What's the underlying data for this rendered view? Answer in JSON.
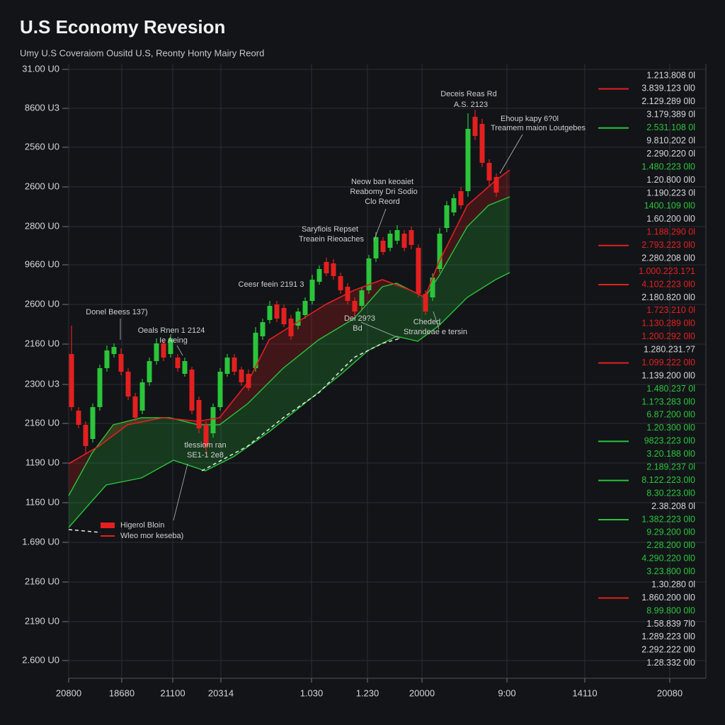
{
  "chart_data": {
    "type": "candlestick",
    "title": "U.S Economy Revesion",
    "subtitle": "Umy U.S Coveraiom Ousitd U.S, Reonty Honty Mairy Reord",
    "xlim": [
      0,
      900
    ],
    "ylim": [
      -27,
      843
    ],
    "xticks": [
      {
        "value": 0,
        "label": "20800"
      },
      {
        "value": 75,
        "label": "18680"
      },
      {
        "value": 147,
        "label": "21100"
      },
      {
        "value": 215,
        "label": "20314"
      },
      {
        "value": 343,
        "label": "1.030"
      },
      {
        "value": 422,
        "label": "1.230"
      },
      {
        "value": 499,
        "label": "20000"
      },
      {
        "value": 619,
        "label": "9:00"
      },
      {
        "value": 729,
        "label": "14110"
      },
      {
        "value": 849,
        "label": "20080"
      }
    ],
    "yticks": [
      {
        "value": 0,
        "label": "2.600 U0"
      },
      {
        "value": 55,
        "label": "2190 U0"
      },
      {
        "value": 111,
        "label": "2160 U0"
      },
      {
        "value": 167,
        "label": "1.690 U0"
      },
      {
        "value": 223,
        "label": "1160 U0"
      },
      {
        "value": 279,
        "label": "1190 U0"
      },
      {
        "value": 335,
        "label": "2160 U0"
      },
      {
        "value": 390,
        "label": "2300 U3"
      },
      {
        "value": 447,
        "label": "2160 U0"
      },
      {
        "value": 503,
        "label": "2600 U0"
      },
      {
        "value": 559,
        "label": "9660 U0"
      },
      {
        "value": 613,
        "label": "2800 U0"
      },
      {
        "value": 669,
        "label": "2600 U0"
      },
      {
        "value": 725,
        "label": "2560 U0"
      },
      {
        "value": 780,
        "label": "8600 U3"
      },
      {
        "value": 835,
        "label": "31.00 U0"
      }
    ],
    "grid": true,
    "legend": "lower left",
    "candles": {
      "name": "Higerol Bloin",
      "up_color": "#2bc43a",
      "down_color": "#e3201f",
      "x": [
        4,
        14,
        24,
        34,
        44,
        54,
        64,
        74,
        84,
        94,
        104,
        114,
        124,
        134,
        144,
        154,
        164,
        174,
        184,
        194,
        204,
        214,
        224,
        234,
        244,
        254,
        264,
        274,
        284,
        294,
        304,
        314,
        324,
        334,
        344,
        354,
        364,
        374,
        384,
        394,
        404,
        414,
        424,
        434,
        444,
        454,
        464,
        474,
        484,
        494,
        504,
        514,
        524,
        534,
        544,
        554,
        564,
        574,
        584,
        594,
        604
      ],
      "open": [
        433,
        353,
        333,
        313,
        358,
        413,
        433,
        433,
        408,
        373,
        353,
        393,
        423,
        448,
        433,
        428,
        405,
        411,
        368,
        333,
        321,
        358,
        405,
        428,
        411,
        405,
        413,
        458,
        481,
        503,
        498,
        483,
        473,
        488,
        508,
        535,
        563,
        561,
        543,
        528,
        508,
        501,
        523,
        568,
        593,
        583,
        593,
        603,
        608,
        583,
        518,
        513,
        553,
        611,
        633,
        663,
        663,
        768,
        758,
        703,
        683
      ],
      "high": [
        473,
        358,
        338,
        363,
        418,
        445,
        448,
        441,
        413,
        378,
        398,
        428,
        455,
        453,
        461,
        433,
        428,
        415,
        373,
        338,
        363,
        413,
        433,
        433,
        415,
        411,
        471,
        483,
        508,
        508,
        503,
        488,
        498,
        513,
        545,
        558,
        569,
        567,
        548,
        533,
        513,
        528,
        573,
        605,
        598,
        608,
        615,
        608,
        613,
        588,
        523,
        547,
        611,
        649,
        659,
        669,
        773,
        778,
        765,
        708,
        688
      ],
      "low": [
        353,
        328,
        293,
        308,
        353,
        408,
        428,
        403,
        368,
        338,
        348,
        388,
        418,
        423,
        428,
        408,
        401,
        348,
        321,
        293,
        315,
        353,
        401,
        403,
        388,
        381,
        408,
        453,
        476,
        478,
        471,
        453,
        468,
        483,
        503,
        531,
        543,
        538,
        518,
        503,
        488,
        496,
        518,
        563,
        573,
        578,
        588,
        578,
        581,
        513,
        488,
        508,
        548,
        605,
        628,
        638,
        655,
        735,
        697,
        671,
        655
      ],
      "close": [
        358,
        333,
        303,
        358,
        413,
        438,
        443,
        408,
        373,
        343,
        393,
        423,
        448,
        428,
        455,
        413,
        423,
        353,
        328,
        303,
        358,
        408,
        428,
        408,
        393,
        385,
        463,
        478,
        501,
        483,
        475,
        458,
        493,
        508,
        538,
        553,
        547,
        543,
        523,
        508,
        493,
        523,
        568,
        598,
        577,
        603,
        608,
        583,
        587,
        518,
        493,
        541,
        603,
        643,
        653,
        643,
        751,
        741,
        703,
        678,
        661
      ]
    },
    "lines": [
      {
        "name": "Wleo mor keseba)",
        "color": "#e3201f",
        "x": [
          0,
          43,
          83,
          133,
          183,
          213,
          253,
          283,
          323,
          363,
          403,
          443,
          483,
          503,
          523,
          563,
          603,
          623
        ],
        "values": [
          278,
          303,
          333,
          343,
          338,
          343,
          393,
          453,
          478,
          503,
          523,
          538,
          523,
          513,
          563,
          643,
          678,
          693
        ]
      },
      {
        "color": "#e8e8e8",
        "dash": true,
        "x": [
          0,
          45,
          100,
          188,
          253,
          303,
          353,
          403,
          443,
          468
        ],
        "values": [
          185,
          181,
          null,
          268,
          303,
          343,
          378,
          428,
          448,
          455
        ]
      }
    ],
    "band": {
      "color": "#2bc43a",
      "upper": {
        "x": [
          0,
          33,
          63,
          103,
          143,
          183,
          213,
          253,
          303,
          353,
          403,
          443,
          463,
          483,
          503,
          523,
          563,
          593,
          623
        ],
        "values": [
          233,
          293,
          333,
          343,
          343,
          333,
          333,
          363,
          413,
          453,
          483,
          528,
          533,
          523,
          513,
          543,
          613,
          643,
          655
        ]
      },
      "lower": {
        "x": [
          0,
          53,
          103,
          148,
          193,
          233,
          283,
          333,
          383,
          423,
          463,
          493,
          523,
          563,
          603,
          623
        ],
        "values": [
          188,
          248,
          258,
          283,
          268,
          288,
          323,
          363,
          403,
          438,
          458,
          451,
          473,
          513,
          538,
          548
        ]
      }
    },
    "annotations": [
      "Deceis Reas Rd",
      "A.S. 2123",
      "Ehoup kapy 6?0l",
      "Treamem maion Loutgebes",
      "Neow ban keoaiet",
      "Reabomy Dri Sodio",
      "Clo Reord",
      "Saryfiois Repset",
      "Treaein Rieoaches",
      "Ceesr feein 2191 3",
      "Donel Beess 137)",
      "Oeals Rnen 1 2124",
      "Ie Aeing",
      "Dei 29?3",
      "Bd",
      "Cheded",
      "Strandeae e tersin",
      "tlessiom ran",
      "SE1-1 2e8"
    ],
    "side_list": [
      {
        "text": "1.213.808 0l",
        "color": "#d6d6d6"
      },
      {
        "text": "3.839.123 0l0",
        "color": "#d6d6d6",
        "marker": "#e3201f"
      },
      {
        "text": "2.129.289 0l0",
        "color": "#d6d6d6"
      },
      {
        "text": "3.179.389 0l",
        "color": "#d6d6d6"
      },
      {
        "text": "2.531.108 0l",
        "color": "#2bc43a",
        "marker": "#2bc43a"
      },
      {
        "text": "9.810.202 0l",
        "color": "#d6d6d6"
      },
      {
        "text": "2.290.220 0l",
        "color": "#d6d6d6"
      },
      {
        "text": "1.480.223 0l0",
        "color": "#2bc43a"
      },
      {
        "text": "1.20.800 0l0",
        "color": "#d6d6d6"
      },
      {
        "text": "1.190.223 0l",
        "color": "#d6d6d6"
      },
      {
        "text": "1400.109 0l0",
        "color": "#2bc43a"
      },
      {
        "text": "1.60.200 0l0",
        "color": "#d6d6d6"
      },
      {
        "text": "1.188.290 0l",
        "color": "#e3201f"
      },
      {
        "text": "2.793.223 0l0",
        "color": "#e3201f",
        "marker": "#e3201f"
      },
      {
        "text": "2.280.208 0l0",
        "color": "#d6d6d6"
      },
      {
        "text": "1.000.223.1?1",
        "color": "#e3201f"
      },
      {
        "text": "4.102.223 0l0",
        "color": "#e3201f",
        "marker": "#e3201f"
      },
      {
        "text": "2.180.820 0l0",
        "color": "#d6d6d6"
      },
      {
        "text": "1.723.210 0l",
        "color": "#e3201f"
      },
      {
        "text": "1.130.289 0l0",
        "color": "#e3201f"
      },
      {
        "text": "1.200.292 0l0",
        "color": "#e3201f"
      },
      {
        "text": "1.280.231.?7",
        "color": "#d6d6d6"
      },
      {
        "text": "1.099.222 0l0",
        "color": "#e3201f",
        "marker": "#e3201f"
      },
      {
        "text": "1.139.200 0l0",
        "color": "#d6d6d6"
      },
      {
        "text": "1.480.237 0l",
        "color": "#2bc43a"
      },
      {
        "text": "1.1?3.283 0l0",
        "color": "#2bc43a"
      },
      {
        "text": "6.87.200 0l0",
        "color": "#2bc43a"
      },
      {
        "text": "1.20.300 0l0",
        "color": "#2bc43a"
      },
      {
        "text": "9823.223 0l0",
        "color": "#2bc43a",
        "marker": "#2bc43a"
      },
      {
        "text": "3.20.188 0l0",
        "color": "#2bc43a"
      },
      {
        "text": "2.189.237 0l",
        "color": "#2bc43a"
      },
      {
        "text": "8.122.223.0l0",
        "color": "#2bc43a",
        "marker": "#2bc43a"
      },
      {
        "text": "8.30.223.0l0",
        "color": "#2bc43a"
      },
      {
        "text": "2.38.208 0l",
        "color": "#d6d6d6"
      },
      {
        "text": "1.382.223 0l0",
        "color": "#2bc43a",
        "marker": "#2bc43a"
      },
      {
        "text": "9.29.200 0l0",
        "color": "#2bc43a"
      },
      {
        "text": "2.28.200 0l0",
        "color": "#2bc43a"
      },
      {
        "text": "4.290.220 0l0",
        "color": "#2bc43a"
      },
      {
        "text": "3.23.800 0l0",
        "color": "#2bc43a"
      },
      {
        "text": "1.30.280 0l",
        "color": "#d6d6d6"
      },
      {
        "text": "1.860.200 0l0",
        "color": "#d6d6d6",
        "marker": "#e3201f"
      },
      {
        "text": "8.99.800 0l0",
        "color": "#2bc43a"
      },
      {
        "text": "1.58.839 7l0",
        "color": "#d6d6d6"
      },
      {
        "text": "1.289.223 0l0",
        "color": "#d6d6d6"
      },
      {
        "text": "2.292.222 0l0",
        "color": "#d6d6d6"
      },
      {
        "text": "1.28.332 0l0",
        "color": "#d6d6d6"
      }
    ]
  }
}
